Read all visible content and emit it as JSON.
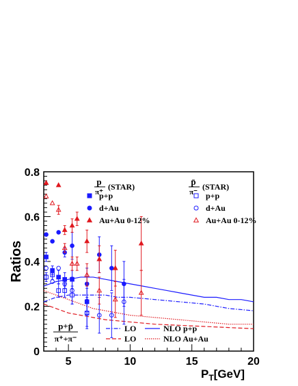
{
  "chart_data": {
    "type": "scatter",
    "xlabel": "P_T[GeV]",
    "ylabel": "Ratios",
    "xlim": [
      3,
      20
    ],
    "ylim": [
      0,
      0.8
    ],
    "x_ticks": [
      5,
      10,
      15,
      20
    ],
    "y_ticks": [
      0,
      0.2,
      0.4,
      0.6,
      0.8
    ],
    "grid": false,
    "legend_groups": [
      {
        "frac_num": "p",
        "frac_den": "π⁺",
        "suffix": "(STAR)"
      },
      {
        "frac_num": "p̄",
        "frac_den": "π⁻",
        "suffix": "(STAR)"
      }
    ],
    "series": [
      {
        "name": "p+p",
        "group": 0,
        "marker": "square-filled",
        "color": "#1a1aff",
        "points": [
          [
            3.2,
            0.42
          ],
          [
            3.7,
            0.36
          ],
          [
            4.2,
            0.33
          ],
          [
            4.7,
            0.32
          ],
          [
            5.3,
            0.32
          ],
          [
            6.5,
            0.22
          ]
        ],
        "errors": [
          0.02,
          0.02,
          0.03,
          0.03,
          0.04,
          0.06
        ]
      },
      {
        "name": "d+Au",
        "group": 0,
        "marker": "circle-filled",
        "color": "#1a1aff",
        "points": [
          [
            3.2,
            0.52
          ],
          [
            3.7,
            0.49
          ],
          [
            4.2,
            0.53
          ],
          [
            4.7,
            0.44
          ],
          [
            5.3,
            0.47
          ],
          [
            6.5,
            0.3
          ],
          [
            7.5,
            0.43
          ],
          [
            8.5,
            0.37
          ],
          [
            9.5,
            0.3
          ]
        ],
        "errors": [
          0.01,
          0.01,
          0.01,
          0.02,
          0.06,
          0.07,
          0.08,
          0.1,
          0.1
        ]
      },
      {
        "name": "Au+Au  0-12%",
        "group": 0,
        "marker": "triangle-filled",
        "color": "#e0181f",
        "points": [
          [
            3.2,
            0.75
          ],
          [
            4.2,
            0.74
          ],
          [
            4.7,
            0.54
          ],
          [
            5.3,
            0.56
          ],
          [
            5.7,
            0.59
          ],
          [
            6.5,
            0.49
          ],
          [
            7.5,
            0.41
          ],
          [
            8.8,
            0.37
          ],
          [
            10.9,
            0.48
          ]
        ],
        "errors": [
          0.01,
          0.01,
          0.02,
          0.03,
          0.03,
          0.05,
          0.06,
          0.08,
          0.12
        ]
      },
      {
        "name": "p+p",
        "group": 1,
        "marker": "square-open",
        "color": "#1a1aff",
        "points": [
          [
            3.2,
            0.33
          ],
          [
            3.7,
            0.34
          ],
          [
            4.2,
            0.27
          ],
          [
            4.7,
            0.27
          ],
          [
            5.3,
            0.25
          ],
          [
            6.5,
            0.17
          ]
        ],
        "errors": [
          0.02,
          0.02,
          0.03,
          0.03,
          0.04,
          0.06
        ]
      },
      {
        "name": "d+Au",
        "group": 1,
        "marker": "circle-open",
        "color": "#1a1aff",
        "points": [
          [
            3.2,
            0.37
          ],
          [
            3.7,
            0.31
          ],
          [
            4.2,
            0.37
          ],
          [
            4.7,
            0.3
          ],
          [
            5.3,
            0.27
          ],
          [
            6.5,
            0.17
          ],
          [
            7.5,
            0.16
          ],
          [
            8.5,
            0.16
          ],
          [
            9.5,
            0.22
          ]
        ],
        "errors": [
          0.01,
          0.01,
          0.01,
          0.02,
          0.06,
          0.07,
          0.08,
          0.1,
          0.1
        ]
      },
      {
        "name": "Au+Au  0-12%",
        "group": 1,
        "marker": "triangle-open",
        "color": "#e0181f",
        "points": [
          [
            3.2,
            0.69
          ],
          [
            3.7,
            0.66
          ],
          [
            4.2,
            0.63
          ],
          [
            4.7,
            0.46
          ],
          [
            5.3,
            0.39
          ],
          [
            5.7,
            0.39
          ],
          [
            6.5,
            0.34
          ],
          [
            7.5,
            0.27
          ],
          [
            8.8,
            0.23
          ],
          [
            10.9,
            0.26
          ]
        ],
        "errors": [
          0.01,
          0.01,
          0.02,
          0.02,
          0.03,
          0.03,
          0.05,
          0.06,
          0.08,
          0.1
        ]
      }
    ],
    "curves": [
      {
        "label": "LO",
        "style": "dashdot",
        "color": "#1a1aff",
        "points": [
          [
            3,
            0.22
          ],
          [
            4,
            0.24
          ],
          [
            5,
            0.25
          ],
          [
            6,
            0.25
          ],
          [
            7,
            0.25
          ],
          [
            8,
            0.25
          ],
          [
            9,
            0.24
          ],
          [
            10,
            0.24
          ],
          [
            12,
            0.23
          ],
          [
            14,
            0.22
          ],
          [
            16,
            0.21
          ],
          [
            18,
            0.19
          ],
          [
            20,
            0.18
          ]
        ]
      },
      {
        "label": "LO",
        "style": "dashed",
        "color": "#e0181f",
        "points": [
          [
            3,
            0.21
          ],
          [
            4,
            0.19
          ],
          [
            5,
            0.17
          ],
          [
            6,
            0.16
          ],
          [
            7,
            0.15
          ],
          [
            8,
            0.14
          ],
          [
            10,
            0.13
          ],
          [
            12,
            0.12
          ],
          [
            14,
            0.115
          ],
          [
            16,
            0.11
          ],
          [
            18,
            0.105
          ],
          [
            20,
            0.1
          ]
        ]
      },
      {
        "label": "NLO",
        "sublabel": "p+p",
        "style": "solid",
        "color": "#1a1aff",
        "points": [
          [
            3,
            0.29
          ],
          [
            4,
            0.31
          ],
          [
            5,
            0.32
          ],
          [
            6,
            0.33
          ],
          [
            7,
            0.33
          ],
          [
            8,
            0.32
          ],
          [
            9,
            0.31
          ],
          [
            10,
            0.3
          ],
          [
            11,
            0.29
          ],
          [
            12,
            0.28
          ],
          [
            13,
            0.27
          ],
          [
            14,
            0.26
          ],
          [
            15,
            0.25
          ],
          [
            16,
            0.24
          ],
          [
            17,
            0.24
          ],
          [
            18,
            0.23
          ],
          [
            19,
            0.23
          ],
          [
            20,
            0.22
          ]
        ]
      },
      {
        "label": "NLO",
        "sublabel": "Au+Au",
        "style": "dotted",
        "color": "#e0181f",
        "points": [
          [
            3,
            0.27
          ],
          [
            4,
            0.25
          ],
          [
            5,
            0.23
          ],
          [
            6,
            0.21
          ],
          [
            7,
            0.19
          ],
          [
            8,
            0.18
          ],
          [
            9,
            0.17
          ],
          [
            10,
            0.16
          ],
          [
            12,
            0.15
          ],
          [
            14,
            0.14
          ],
          [
            16,
            0.13
          ],
          [
            18,
            0.12
          ],
          [
            20,
            0.12
          ]
        ]
      }
    ],
    "inset_label": {
      "num": "p+p̄",
      "den": "π⁺+π⁻"
    }
  }
}
